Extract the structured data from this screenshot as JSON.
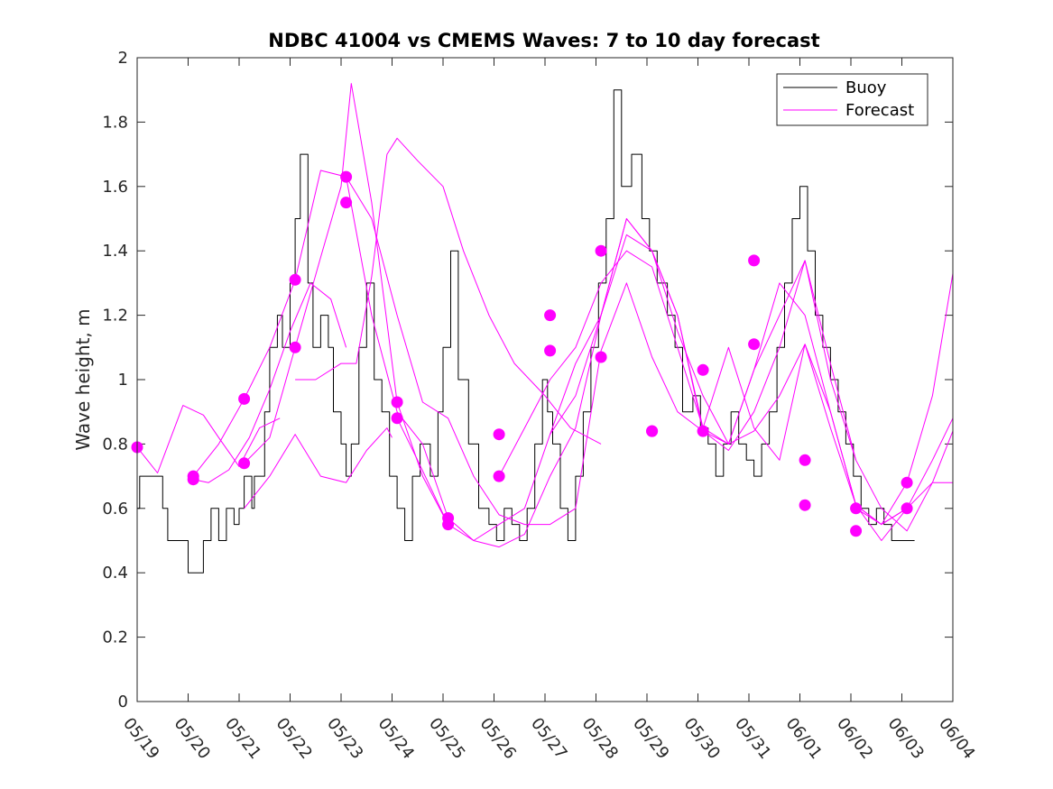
{
  "chart_data": {
    "type": "line",
    "title": "NDBC 41004 vs CMEMS Waves: 7 to 10 day forecast",
    "ylabel": "Wave height, m",
    "xlabel": "",
    "xlim": [
      0,
      16
    ],
    "ylim": [
      0,
      2
    ],
    "yticks": [
      "0",
      "0.2",
      "0.4",
      "0.6",
      "0.8",
      "1",
      "1.2",
      "1.4",
      "1.6",
      "1.8",
      "2"
    ],
    "xticks": [
      "05/19",
      "05/20",
      "05/21",
      "05/22",
      "05/23",
      "05/24",
      "05/25",
      "05/26",
      "05/27",
      "05/28",
      "05/29",
      "05/30",
      "05/31",
      "06/01",
      "06/02",
      "06/03",
      "06/04"
    ],
    "legend_position": "top-right",
    "colors": {
      "buoy": "#000000",
      "forecast": "#ff00ff"
    },
    "legend": [
      {
        "label": "Buoy",
        "color": "#000000"
      },
      {
        "label": "Forecast",
        "color": "#ff00ff"
      }
    ],
    "series": [
      {
        "name": "Buoy",
        "color": "#000000",
        "x": [
          0.0,
          0.05,
          0.4,
          0.5,
          0.6,
          0.9,
          1.0,
          1.3,
          1.45,
          1.6,
          1.75,
          1.9,
          2.0,
          2.1,
          2.25,
          2.3,
          2.5,
          2.6,
          2.75,
          2.85,
          3.0,
          3.1,
          3.2,
          3.35,
          3.45,
          3.6,
          3.75,
          3.85,
          4.0,
          4.1,
          4.2,
          4.35,
          4.5,
          4.65,
          4.8,
          4.95,
          5.1,
          5.25,
          5.4,
          5.55,
          5.75,
          5.9,
          6.0,
          6.15,
          6.3,
          6.5,
          6.7,
          6.9,
          7.05,
          7.2,
          7.35,
          7.5,
          7.65,
          7.8,
          7.95,
          8.05,
          8.15,
          8.3,
          8.45,
          8.6,
          8.75,
          8.9,
          9.05,
          9.2,
          9.35,
          9.5,
          9.7,
          9.9,
          10.05,
          10.2,
          10.4,
          10.55,
          10.7,
          10.9,
          11.05,
          11.2,
          11.35,
          11.5,
          11.65,
          11.8,
          11.95,
          12.1,
          12.25,
          12.4,
          12.55,
          12.7,
          12.85,
          13.0,
          13.15,
          13.3,
          13.45,
          13.6,
          13.75,
          13.9,
          14.05,
          14.2,
          14.35,
          14.5,
          14.65,
          14.8,
          14.95,
          15.1,
          15.25
        ],
        "y": [
          0.6,
          0.7,
          0.7,
          0.6,
          0.5,
          0.5,
          0.4,
          0.5,
          0.6,
          0.5,
          0.6,
          0.55,
          0.6,
          0.7,
          0.6,
          0.7,
          0.9,
          1.1,
          1.2,
          1.1,
          1.3,
          1.5,
          1.7,
          1.3,
          1.1,
          1.2,
          1.1,
          0.9,
          0.8,
          0.7,
          0.8,
          1.1,
          1.3,
          1.0,
          0.9,
          0.7,
          0.6,
          0.5,
          0.7,
          0.8,
          0.7,
          0.9,
          1.1,
          1.4,
          1.0,
          0.8,
          0.6,
          0.55,
          0.5,
          0.6,
          0.55,
          0.5,
          0.6,
          0.8,
          1.0,
          0.9,
          0.8,
          0.6,
          0.5,
          0.7,
          0.9,
          1.1,
          1.3,
          1.5,
          1.9,
          1.6,
          1.7,
          1.5,
          1.4,
          1.3,
          1.2,
          1.1,
          0.9,
          0.95,
          0.85,
          0.8,
          0.7,
          0.8,
          0.9,
          0.8,
          0.75,
          0.7,
          0.8,
          0.9,
          1.1,
          1.3,
          1.5,
          1.6,
          1.4,
          1.2,
          1.1,
          1.0,
          0.9,
          0.8,
          0.7,
          0.6,
          0.55,
          0.6,
          0.55,
          0.5,
          0.5,
          0.5,
          0.5
        ]
      },
      {
        "name": "Forecast",
        "color": "#ff00ff",
        "x": [
          0.0,
          0.4,
          0.9,
          1.3,
          1.6,
          2.0,
          2.4,
          2.8
        ],
        "y": [
          0.79,
          0.71,
          0.92,
          0.89,
          0.82,
          0.73,
          0.85,
          0.88
        ]
      },
      {
        "name": "Forecast",
        "color": "#ff00ff",
        "x": [
          1.1,
          1.4,
          1.8,
          2.2,
          2.6,
          3.0,
          3.4,
          3.8,
          4.1
        ],
        "y": [
          0.69,
          0.68,
          0.72,
          0.82,
          0.97,
          1.15,
          1.3,
          1.25,
          1.1
        ]
      },
      {
        "name": "Forecast",
        "color": "#ff00ff",
        "x": [
          1.1,
          1.6,
          2.1,
          2.6,
          3.1,
          3.6,
          4.1,
          4.6,
          5.1,
          5.6,
          6.1
        ],
        "y": [
          0.7,
          0.8,
          0.94,
          1.1,
          1.31,
          1.65,
          1.63,
          1.2,
          0.9,
          0.8,
          0.57
        ]
      },
      {
        "name": "Forecast",
        "color": "#ff00ff",
        "x": [
          2.1,
          2.6,
          3.1,
          3.6,
          4.0,
          4.2,
          4.6,
          5.1,
          5.6,
          6.1
        ],
        "y": [
          0.74,
          0.82,
          1.1,
          1.38,
          1.6,
          1.92,
          1.55,
          0.93,
          0.7,
          0.55
        ]
      },
      {
        "name": "Forecast",
        "color": "#ff00ff",
        "x": [
          2.1,
          2.6,
          3.1,
          3.6,
          4.1,
          4.5,
          4.9,
          5.0
        ],
        "y": [
          0.6,
          0.7,
          0.83,
          0.7,
          0.68,
          0.78,
          0.85,
          0.82
        ]
      },
      {
        "name": "Forecast",
        "color": "#ff00ff",
        "x": [
          3.1,
          3.5,
          4.0,
          4.3,
          4.6,
          4.9,
          5.1,
          5.5,
          6.0,
          6.4,
          6.9,
          7.4,
          8.0,
          8.5,
          9.1
        ],
        "y": [
          1.0,
          1.0,
          1.05,
          1.05,
          1.32,
          1.7,
          1.75,
          1.68,
          1.6,
          1.4,
          1.2,
          1.05,
          0.95,
          0.85,
          0.8
        ]
      },
      {
        "name": "Forecast",
        "color": "#ff00ff",
        "x": [
          4.1,
          4.6,
          5.1,
          5.6,
          6.1,
          6.6,
          7.1,
          7.6,
          8.1,
          8.6,
          9.1
        ],
        "y": [
          1.63,
          1.5,
          1.2,
          0.93,
          0.88,
          0.7,
          0.58,
          0.55,
          0.55,
          0.6,
          1.09
        ]
      },
      {
        "name": "Forecast",
        "color": "#ff00ff",
        "x": [
          5.1,
          5.5,
          6.1,
          6.6,
          7.1,
          7.6,
          8.1,
          8.6,
          9.1,
          9.6,
          10.1
        ],
        "y": [
          0.88,
          0.75,
          0.55,
          0.5,
          0.48,
          0.52,
          0.7,
          0.85,
          1.2,
          1.45,
          1.4
        ]
      },
      {
        "name": "Forecast",
        "color": "#ff00ff",
        "x": [
          6.1,
          6.6,
          7.1,
          7.6,
          8.1,
          8.6,
          9.1,
          9.6,
          10.1,
          10.6,
          11.1
        ],
        "y": [
          0.57,
          0.5,
          0.55,
          0.6,
          0.83,
          1.05,
          1.2,
          1.5,
          1.4,
          1.2,
          0.84
        ]
      },
      {
        "name": "Forecast",
        "color": "#ff00ff",
        "x": [
          7.1,
          7.6,
          8.1,
          8.6,
          9.1,
          9.6,
          10.1,
          10.6,
          11.1,
          11.6,
          12.1
        ],
        "y": [
          0.7,
          0.85,
          1.0,
          1.1,
          1.3,
          1.4,
          1.35,
          1.1,
          0.85,
          0.8,
          1.03
        ]
      },
      {
        "name": "Forecast",
        "color": "#ff00ff",
        "x": [
          8.1,
          8.6,
          9.1,
          9.6,
          10.1,
          10.6,
          11.1,
          11.6,
          12.1,
          12.6,
          13.1
        ],
        "y": [
          0.83,
          0.95,
          1.2,
          1.5,
          1.4,
          1.15,
          0.95,
          0.8,
          0.84,
          0.95,
          1.11
        ]
      },
      {
        "name": "Forecast",
        "color": "#ff00ff",
        "x": [
          9.1,
          9.6,
          10.1,
          10.6,
          11.1,
          11.6,
          12.1,
          12.6,
          13.1,
          13.6,
          14.1
        ],
        "y": [
          1.09,
          1.3,
          1.07,
          0.9,
          0.84,
          0.78,
          0.9,
          1.1,
          1.37,
          1.0,
          0.75
        ]
      },
      {
        "name": "Forecast",
        "color": "#ff00ff",
        "x": [
          10.1,
          10.6,
          11.1,
          11.6,
          12.1,
          12.6,
          13.1,
          13.6,
          14.1,
          14.6,
          15.1
        ],
        "y": [
          1.4,
          1.2,
          0.85,
          1.1,
          0.85,
          0.75,
          1.11,
          0.85,
          0.61,
          0.55,
          0.6
        ]
      },
      {
        "name": "Forecast",
        "color": "#ff00ff",
        "x": [
          11.1,
          11.6,
          12.1,
          12.6,
          13.1,
          13.6,
          14.1,
          14.6,
          15.1,
          15.6,
          16.0
        ],
        "y": [
          0.84,
          0.8,
          1.03,
          1.3,
          1.2,
          0.9,
          0.61,
          0.55,
          0.6,
          0.75,
          0.88
        ]
      },
      {
        "name": "Forecast",
        "color": "#ff00ff",
        "x": [
          12.1,
          12.6,
          13.1,
          13.6,
          14.1,
          14.6,
          15.1,
          15.6,
          16.0
        ],
        "y": [
          1.03,
          1.2,
          1.37,
          1.05,
          0.75,
          0.6,
          0.53,
          0.68,
          0.84
        ]
      },
      {
        "name": "Forecast",
        "color": "#ff00ff",
        "x": [
          13.1,
          13.6,
          14.1,
          14.6,
          15.1,
          15.6,
          16.0
        ],
        "y": [
          1.11,
          0.9,
          0.61,
          0.5,
          0.6,
          0.68,
          0.68
        ]
      },
      {
        "name": "Forecast",
        "color": "#ff00ff",
        "x": [
          14.1,
          14.6,
          15.1,
          15.6,
          16.0
        ],
        "y": [
          0.6,
          0.55,
          0.68,
          0.95,
          1.33
        ]
      }
    ],
    "markers": {
      "name": "Forecast",
      "color": "#ff00ff",
      "x": [
        0.0,
        1.1,
        1.1,
        2.1,
        2.1,
        3.1,
        3.1,
        4.1,
        4.1,
        5.1,
        5.1,
        6.1,
        6.1,
        7.1,
        7.1,
        8.1,
        8.1,
        9.1,
        9.1,
        10.1,
        10.1,
        11.1,
        11.1,
        12.1,
        12.1,
        13.1,
        13.1,
        14.1,
        14.1,
        15.1,
        15.1
      ],
      "y": [
        0.79,
        0.7,
        0.69,
        0.94,
        0.74,
        1.31,
        1.1,
        1.63,
        1.55,
        0.93,
        0.88,
        0.57,
        0.55,
        0.83,
        0.7,
        1.2,
        1.09,
        1.4,
        1.07,
        0.84,
        0.84,
        1.03,
        0.84,
        1.37,
        1.11,
        0.75,
        0.61,
        0.6,
        0.53,
        0.68,
        0.6
      ]
    }
  }
}
